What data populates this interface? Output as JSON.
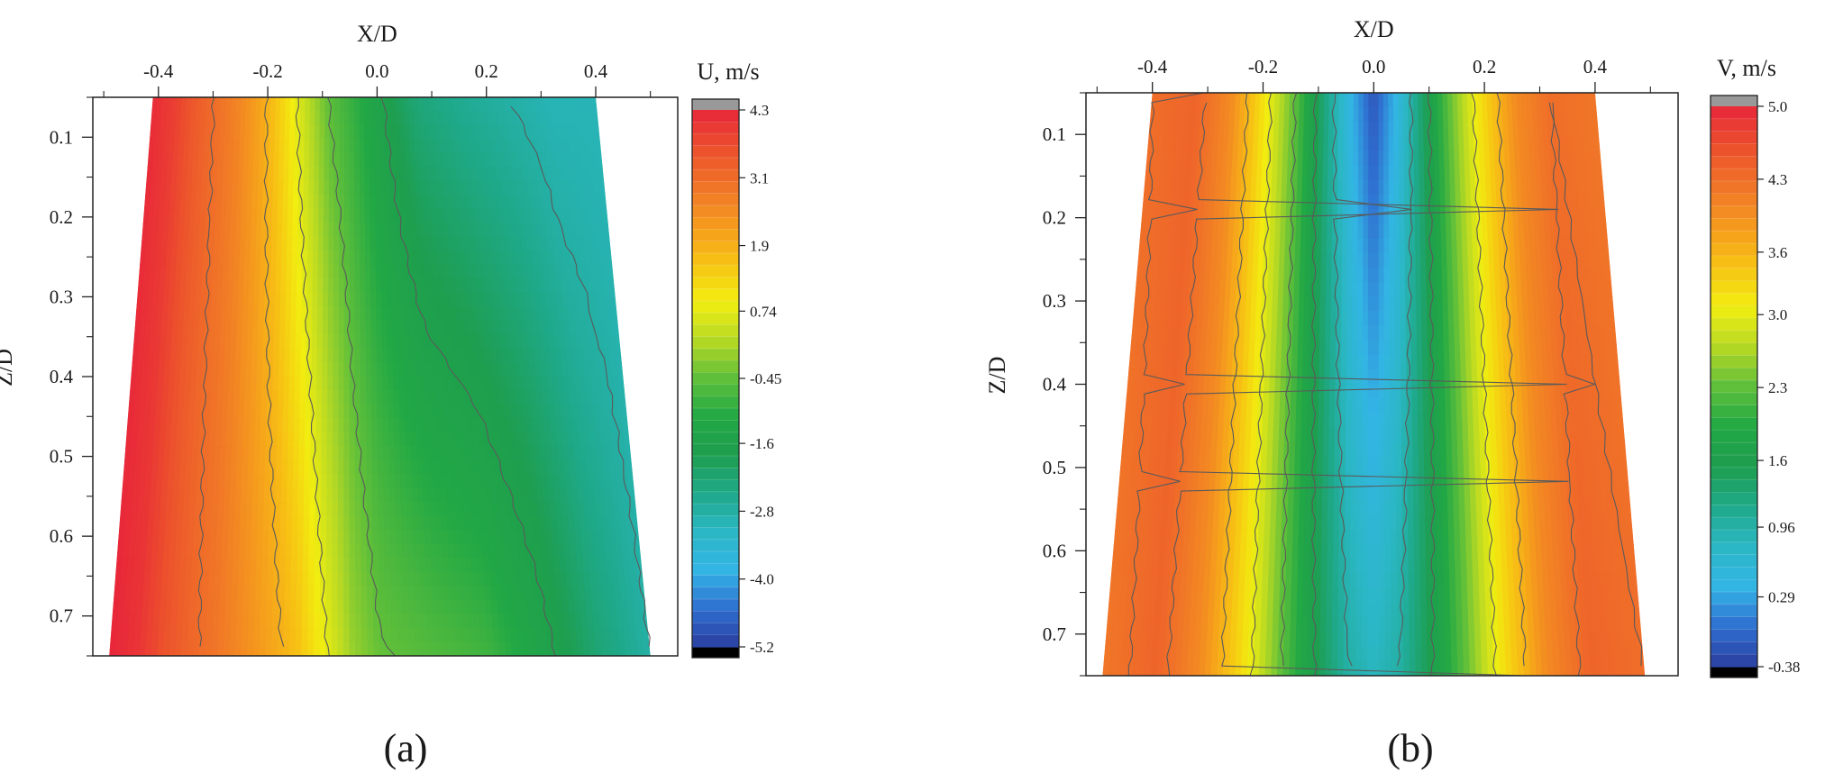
{
  "colors": {
    "scale": [
      "#2b3fa1",
      "#2f6fd0",
      "#33b5e5",
      "#2bb7c4",
      "#1fa98a",
      "#1e9e4f",
      "#22a845",
      "#5fbf3a",
      "#b7d924",
      "#f2ee10",
      "#f7c214",
      "#f59a1e",
      "#f07428",
      "#ec502d",
      "#e8263a"
    ],
    "over": "#999999",
    "under": "#000000",
    "contour": "#5a5a5a",
    "dashed_contour": "#ffffff"
  },
  "chart_data": [
    {
      "type": "heatmap",
      "panel_label": "(a)",
      "title": "",
      "xlabel": "X/D",
      "ylabel": "Z/D",
      "xlim": [
        -0.52,
        0.55
      ],
      "ylim": [
        0.05,
        0.75
      ],
      "x_ticks": [
        -0.4,
        -0.2,
        0.0,
        0.2,
        0.4
      ],
      "x_tick_labels": [
        "-0.4",
        "-0.2",
        "0.0",
        "0.2",
        "0.4"
      ],
      "y_ticks": [
        0.1,
        0.2,
        0.3,
        0.4,
        0.5,
        0.6,
        0.7
      ],
      "y_tick_labels": [
        "0.1",
        "0.2",
        "0.3",
        "0.4",
        "0.5",
        "0.6",
        "0.7"
      ],
      "field_domain": {
        "z_top": 0.05,
        "x_left_top": -0.41,
        "x_right_top": 0.4,
        "z_bottom": 0.75,
        "x_left_bottom": -0.49,
        "x_right_bottom": 0.5
      },
      "colorbar": {
        "title": "U, m/s",
        "min": -5.2,
        "max": 4.3,
        "tick_values": [
          4.3,
          3.1,
          1.9,
          0.74,
          -0.45,
          -1.6,
          -2.8,
          -4.0,
          -5.2
        ],
        "tick_labels": [
          "4.3",
          "3.1",
          "1.9",
          "0.74",
          "-0.45",
          "-1.6",
          "-2.8",
          "-4.0",
          "-5.2"
        ]
      },
      "profile": {
        "s": [
          0.0,
          0.05,
          0.1,
          0.15,
          0.2,
          0.25,
          0.3,
          0.35,
          0.4,
          0.45,
          0.5,
          0.55,
          0.6,
          0.7,
          0.8,
          0.9,
          1.0
        ],
        "top": [
          4.2,
          3.9,
          3.4,
          3.0,
          2.6,
          2.0,
          1.2,
          0.3,
          -0.5,
          -0.9,
          -1.4,
          -1.9,
          -2.3,
          -2.6,
          -2.8,
          -3.0,
          -3.0
        ],
        "bottom": [
          4.3,
          4.1,
          3.6,
          3.2,
          2.9,
          2.5,
          2.1,
          1.6,
          0.8,
          0.0,
          -0.4,
          -0.5,
          -0.6,
          -0.8,
          -1.4,
          -2.2,
          -2.8
        ]
      },
      "contour_levels": [
        3.1,
        1.9,
        0.74,
        -0.45,
        -1.6,
        -2.8
      ]
    },
    {
      "type": "heatmap",
      "panel_label": "(b)",
      "title": "",
      "xlabel": "X/D",
      "ylabel": "Z/D",
      "xlim": [
        -0.52,
        0.55
      ],
      "ylim": [
        0.05,
        0.75
      ],
      "x_ticks": [
        -0.4,
        -0.2,
        0.0,
        0.2,
        0.4
      ],
      "x_tick_labels": [
        "-0.4",
        "-0.2",
        "0.0",
        "0.2",
        "0.4"
      ],
      "y_ticks": [
        0.1,
        0.2,
        0.3,
        0.4,
        0.5,
        0.6,
        0.7
      ],
      "y_tick_labels": [
        "0.1",
        "0.2",
        "0.3",
        "0.4",
        "0.5",
        "0.6",
        "0.7"
      ],
      "field_domain": {
        "z_top": 0.05,
        "x_left_top": -0.4,
        "x_right_top": 0.4,
        "z_bottom": 0.75,
        "x_left_bottom": -0.49,
        "x_right_bottom": 0.49
      },
      "colorbar": {
        "title": "V, m/s",
        "min": -0.38,
        "max": 5.0,
        "tick_values": [
          5.0,
          4.3,
          3.6,
          3.0,
          2.3,
          1.6,
          0.96,
          0.29,
          -0.38
        ],
        "tick_labels": [
          "5.0",
          "4.3",
          "3.6",
          "3.0",
          "2.3",
          "1.6",
          "0.96",
          "0.29",
          "-0.38"
        ]
      },
      "profile": {
        "s": [
          0.0,
          0.1,
          0.18,
          0.26,
          0.33,
          0.4,
          0.45,
          0.5,
          0.55,
          0.6,
          0.67,
          0.74,
          0.82,
          0.9,
          1.0
        ],
        "top": [
          4.3,
          4.4,
          4.0,
          3.1,
          2.2,
          1.1,
          0.4,
          -0.2,
          0.4,
          1.2,
          2.3,
          3.2,
          4.0,
          4.3,
          4.2
        ],
        "bottom": [
          4.2,
          4.4,
          4.0,
          3.2,
          2.3,
          1.5,
          1.0,
          0.8,
          1.0,
          1.5,
          2.3,
          3.2,
          4.0,
          4.4,
          4.3
        ]
      },
      "contour_levels": [
        4.3,
        3.6,
        3.0,
        2.3,
        1.6,
        0.96
      ],
      "dashed_contour_value": -0.2
    }
  ]
}
